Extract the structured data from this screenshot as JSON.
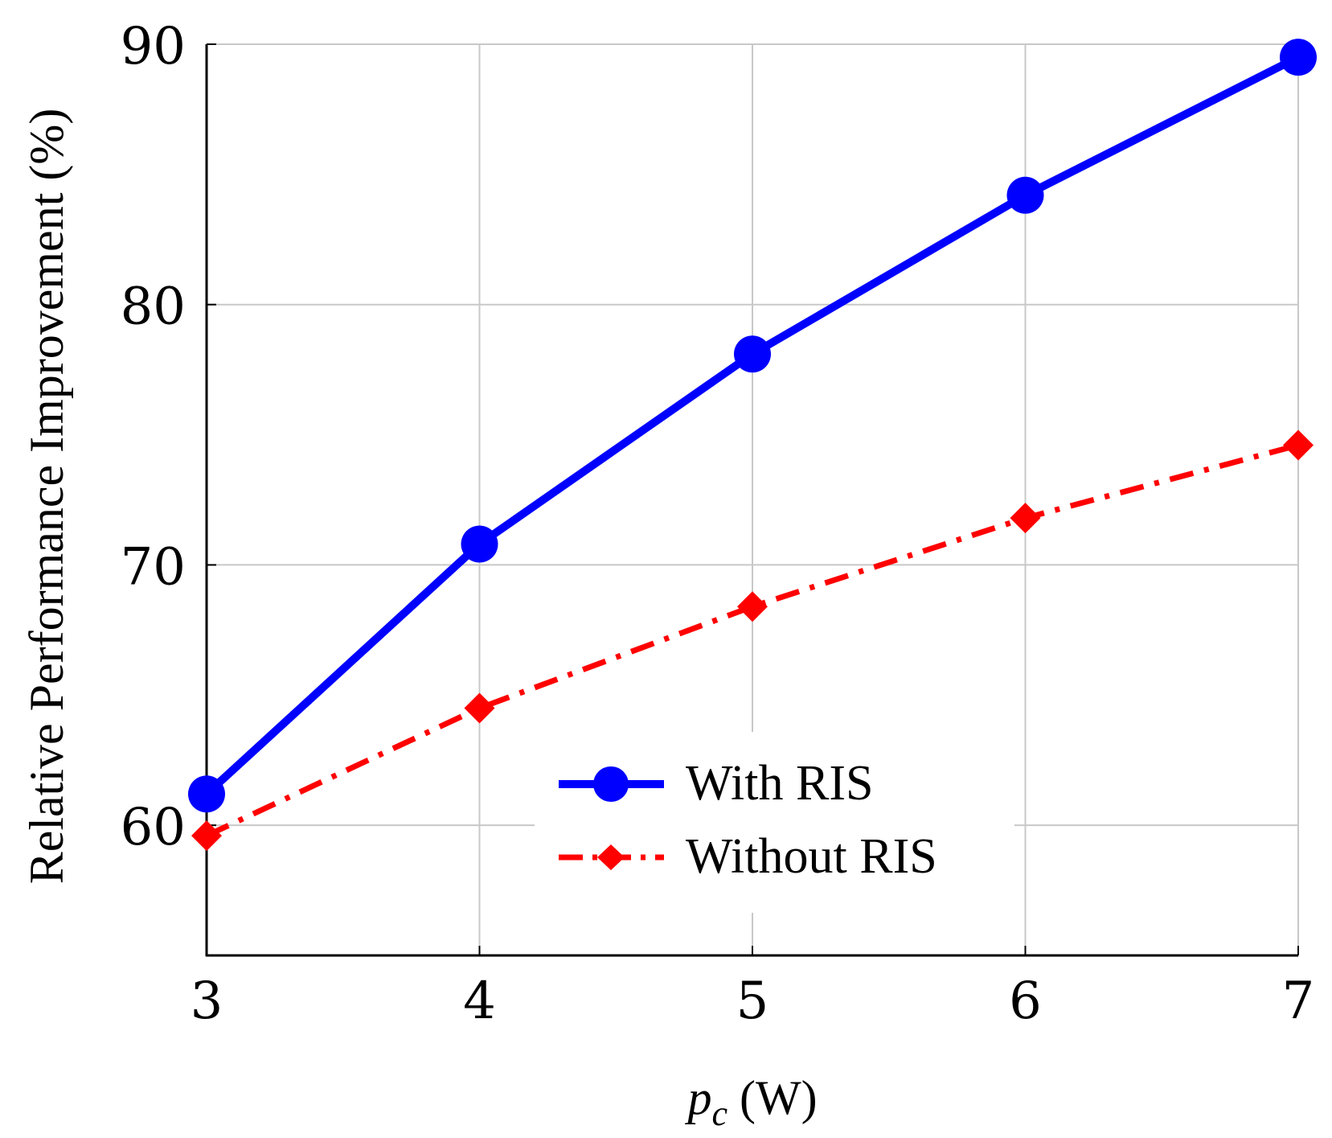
{
  "chart_data": {
    "type": "line",
    "x": [
      3,
      4,
      5,
      6,
      7
    ],
    "xlabel": "p_c (W)",
    "xlabel_parts": {
      "var": "p",
      "sub": "c",
      "unit": " (W)"
    },
    "ylabel": "Relative Performance Improvement (%)",
    "xlim": [
      3,
      7
    ],
    "ylim": [
      55,
      90
    ],
    "xticks": [
      3,
      4,
      5,
      6,
      7
    ],
    "yticks": [
      60,
      70,
      80,
      90
    ],
    "grid": true,
    "legend_position": "bottom-right",
    "series": [
      {
        "name": "With RIS",
        "values": [
          61.2,
          70.8,
          78.1,
          84.2,
          89.5
        ],
        "color": "#0000ff",
        "marker": "circle",
        "line_style": "solid"
      },
      {
        "name": "Without RIS",
        "values": [
          59.6,
          64.5,
          68.4,
          71.8,
          74.6
        ],
        "color": "#ff0000",
        "marker": "diamond",
        "line_style": "dash-dot"
      }
    ]
  }
}
